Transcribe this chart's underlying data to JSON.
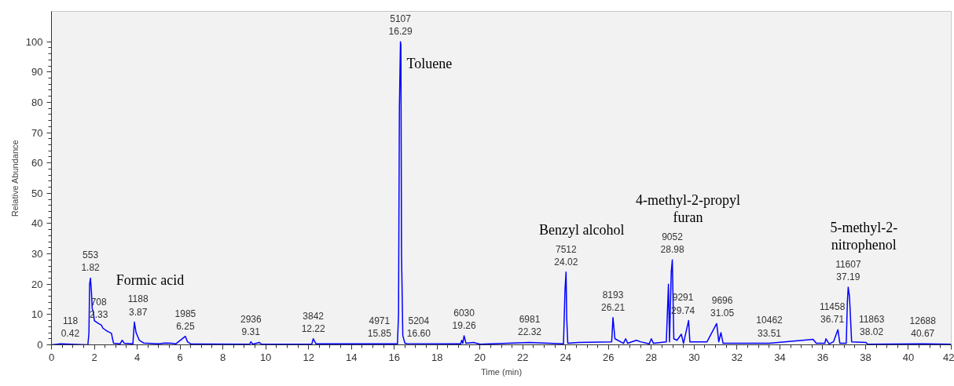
{
  "chart_data": {
    "type": "line",
    "xlabel": "Time (min)",
    "ylabel": "Relative Abundance",
    "xlim": [
      0,
      42
    ],
    "ylim": [
      0,
      110
    ],
    "xticks": [
      0,
      2,
      4,
      6,
      8,
      10,
      12,
      14,
      16,
      18,
      20,
      22,
      24,
      26,
      28,
      30,
      32,
      34,
      36,
      38,
      40,
      42
    ],
    "yticks": [
      0,
      10,
      20,
      30,
      40,
      50,
      60,
      70,
      80,
      90,
      100
    ],
    "grid": false,
    "series": [
      {
        "color": "#0000ff",
        "x": [
          0,
          0.42,
          1.7,
          1.75,
          1.78,
          1.82,
          1.87,
          1.9,
          1.95,
          2.0,
          2.1,
          2.2,
          2.33,
          2.4,
          2.6,
          2.8,
          2.85,
          2.9,
          3.2,
          3.3,
          3.4,
          3.8,
          3.87,
          3.95,
          4.1,
          4.3,
          5.0,
          5.3,
          5.6,
          5.8,
          6.25,
          6.35,
          6.5,
          9.25,
          9.31,
          9.4,
          9.7,
          9.8,
          12.15,
          12.22,
          12.35,
          15.85,
          16.15,
          16.2,
          16.24,
          16.29,
          16.31,
          16.34,
          16.4,
          16.5,
          16.6,
          19.1,
          19.15,
          19.2,
          19.26,
          19.35,
          19.7,
          20,
          22.32,
          23.9,
          23.97,
          24.02,
          24.05,
          24.1,
          24.6,
          26.15,
          26.21,
          26.3,
          26.7,
          26.8,
          26.9,
          27.3,
          27.5,
          27.9,
          28.0,
          28.1,
          28.7,
          28.8,
          28.85,
          28.93,
          28.98,
          29.05,
          29.2,
          29.4,
          29.5,
          29.74,
          29.8,
          30.6,
          31.05,
          31.15,
          31.25,
          31.35,
          33.51,
          35.55,
          35.7,
          36.1,
          36.15,
          36.3,
          36.5,
          36.71,
          36.8,
          37.1,
          37.15,
          37.19,
          37.25,
          37.35,
          38.02,
          38.1,
          40.67,
          42
        ],
        "values": [
          0,
          0.3,
          0,
          4,
          20,
          22,
          17,
          12,
          11,
          8,
          7.5,
          7,
          6.5,
          5.5,
          4.5,
          3.8,
          2,
          0.5,
          0.3,
          1.5,
          0.5,
          0.3,
          7.5,
          4,
          1.5,
          0.6,
          0.3,
          0.6,
          0.5,
          0.3,
          2.8,
          1,
          0.3,
          0.2,
          1,
          0.2,
          0.8,
          0.2,
          0.2,
          2,
          0.3,
          0.3,
          0.3,
          10,
          78,
          100,
          99,
          30,
          3,
          0.5,
          0.4,
          0.3,
          1.5,
          0.5,
          3,
          0.5,
          0.8,
          0.2,
          0.8,
          0.3,
          18,
          24,
          9,
          0.5,
          0.8,
          1,
          9,
          2,
          0.5,
          2,
          0.5,
          1.5,
          1,
          0.3,
          2,
          0.5,
          1,
          20,
          1,
          24,
          28,
          2,
          1.5,
          3.5,
          0.5,
          8,
          1,
          1,
          7,
          1,
          4,
          0.5,
          0.5,
          1.8,
          0.5,
          0.5,
          2,
          0.3,
          1,
          5,
          0.5,
          0.5,
          14,
          19,
          16,
          1,
          0.8,
          0.2,
          0.3,
          0.2
        ]
      }
    ],
    "annotations": [
      {
        "text": "118\n0.42",
        "x": 0.42,
        "y": 0.3
      },
      {
        "text": "553\n1.82",
        "x": 1.82,
        "y": 22
      },
      {
        "text": "708\n2.33",
        "x": 2.33,
        "y": 6.5
      },
      {
        "text": "1188\n3.87",
        "x": 3.87,
        "y": 7.5
      },
      {
        "text": "1985\n6.25",
        "x": 6.25,
        "y": 2.8
      },
      {
        "text": "2936\n9.31",
        "x": 9.31,
        "y": 1
      },
      {
        "text": "3842\n12.22",
        "x": 12.22,
        "y": 2
      },
      {
        "text": "4971\n15.85",
        "x": 15.85,
        "y": 0.3
      },
      {
        "text": "5107\n16.29",
        "x": 16.29,
        "y": 100
      },
      {
        "text": "5204\n16.60",
        "x": 16.6,
        "y": 0.4
      },
      {
        "text": "6030\n19.26",
        "x": 19.26,
        "y": 3
      },
      {
        "text": "6981\n22.32",
        "x": 22.32,
        "y": 0.8
      },
      {
        "text": "7512\n24.02",
        "x": 24.02,
        "y": 24
      },
      {
        "text": "8193\n26.21",
        "x": 26.21,
        "y": 9
      },
      {
        "text": "9052\n28.98",
        "x": 28.98,
        "y": 28
      },
      {
        "text": "9291\n29.74",
        "x": 29.74,
        "y": 8
      },
      {
        "text": "9696\n31.05",
        "x": 31.05,
        "y": 7
      },
      {
        "text": "10462\n33.51",
        "x": 33.51,
        "y": 0.5
      },
      {
        "text": "11458\n36.71",
        "x": 36.71,
        "y": 5
      },
      {
        "text": "11607\n37.19",
        "x": 37.19,
        "y": 19
      },
      {
        "text": "11863\n38.02",
        "x": 38.02,
        "y": 0.8
      },
      {
        "text": "12688\n40.67",
        "x": 40.67,
        "y": 0.3
      },
      {
        "text": "Formic acid",
        "x": 3.87,
        "y": 7.5
      },
      {
        "text": "Toluene",
        "x": 16.29,
        "y": 100
      },
      {
        "text": "Benzyl alcohol",
        "x": 24.02,
        "y": 24
      },
      {
        "text": "4-methyl-2-propyl\nfuran",
        "x": 28.98,
        "y": 28
      },
      {
        "text": "5-methyl-2-\nnitrophenol",
        "x": 37.19,
        "y": 19
      }
    ]
  }
}
